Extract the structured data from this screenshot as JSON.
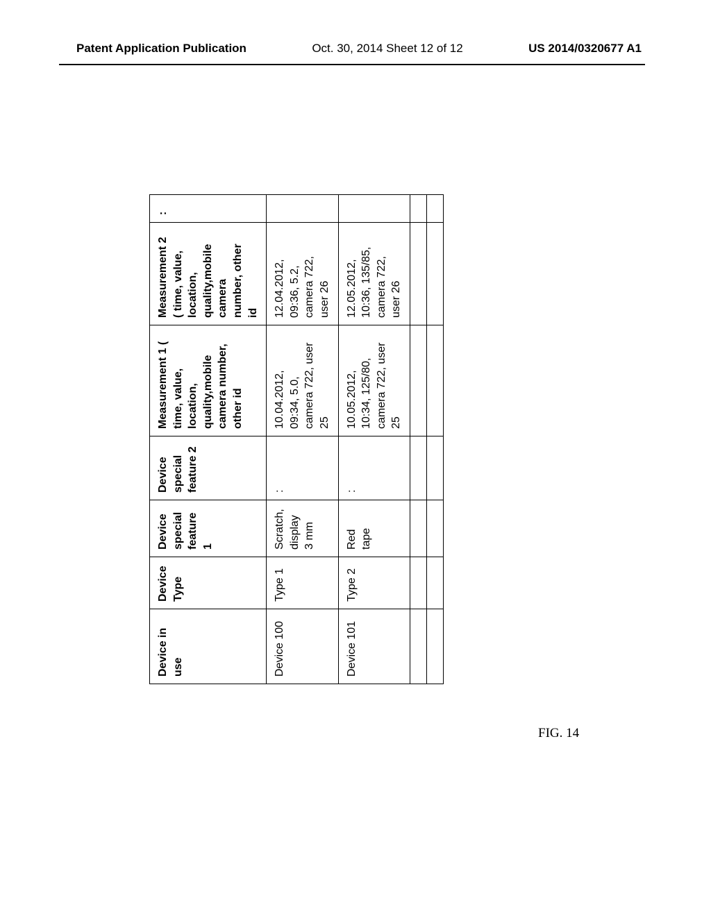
{
  "header": {
    "left": "Patent Application Publication",
    "center": "Oct. 30, 2014  Sheet 12 of 12",
    "right": "US 2014/0320677 A1"
  },
  "figure": {
    "caption": "FIG. 14"
  },
  "table": {
    "columns": [
      "Device in use",
      "Device\nType",
      "Device\nspecial\nfeature\n1",
      "Device\nspecial\nfeature 2",
      "Measurement 1 (\ntime, value,\nlocation,\nquality,mobile\ncamera number,\nother id",
      "Measurement 2\n( time, value,\nlocation,\nquality,mobile\ncamera\nnumber, other\nid",
      ":"
    ],
    "rows": [
      [
        "Device 100",
        "Type 1",
        "Scratch,\ndisplay\n3 mm",
        ":",
        "10.04.2012,\n09:34, 5.0,\ncamera 722, user\n25",
        "12.04.2012,\n09:36, 5.2,\ncamera 722,\nuser 26",
        ""
      ],
      [
        "Device 101",
        "Type 2",
        "Red\ntape",
        ":",
        "10.05.2012,\n10:34, 125/80,\ncamera 722, user\n25",
        "12.05.2012,\n10:36, 135/85,\ncamera 722,\nuser 26",
        ""
      ],
      [
        "",
        "",
        "",
        "",
        "",
        "",
        ""
      ],
      [
        "",
        "",
        "",
        "",
        "",
        "",
        ""
      ]
    ]
  },
  "style": {
    "page_background": "#ffffff",
    "border_color": "#000000",
    "header_font_size": 17,
    "table_font_size": 16,
    "caption_font_size": 19,
    "border_width": 1.5,
    "rule_width": 2.5
  }
}
